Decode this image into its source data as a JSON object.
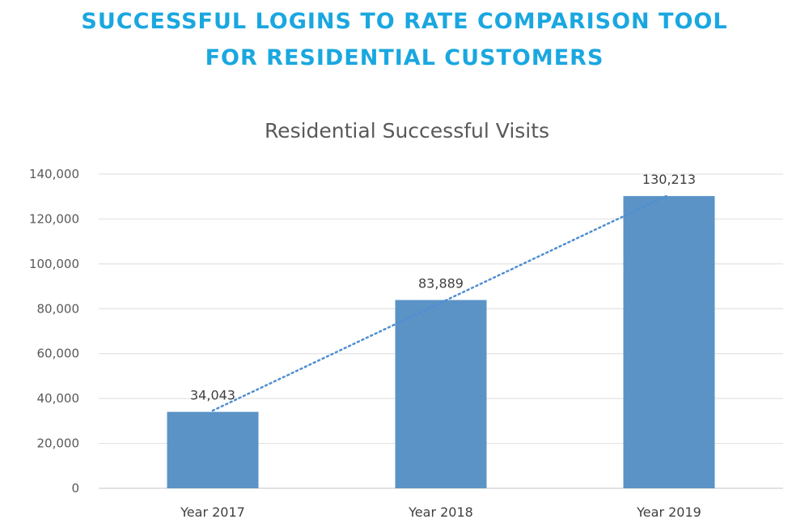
{
  "headline": {
    "line1": "SUCCESSFUL LOGINS TO RATE COMPARISON TOOL",
    "line2": "FOR RESIDENTIAL CUSTOMERS"
  },
  "colors": {
    "headline": "#1aa7e0",
    "bar": "#5b93c6",
    "trendline": "#4f8fd1",
    "gridline": "#e3e3e3",
    "text": "#595959"
  },
  "chart_data": {
    "type": "bar",
    "title": "Residential Successful Visits",
    "xlabel": "",
    "ylabel": "",
    "categories": [
      "Year 2017",
      "Year 2018",
      "Year 2019"
    ],
    "values": [
      34043,
      83889,
      130213
    ],
    "data_labels": [
      "34,043",
      "83,889",
      "130,213"
    ],
    "y_ticks": [
      "0",
      "20,000",
      "40,000",
      "60,000",
      "80,000",
      "100,000",
      "120,000",
      "140,000"
    ],
    "ylim": [
      0,
      140000
    ],
    "grid": true,
    "legend": "none",
    "trendline": "linear, dotted"
  }
}
